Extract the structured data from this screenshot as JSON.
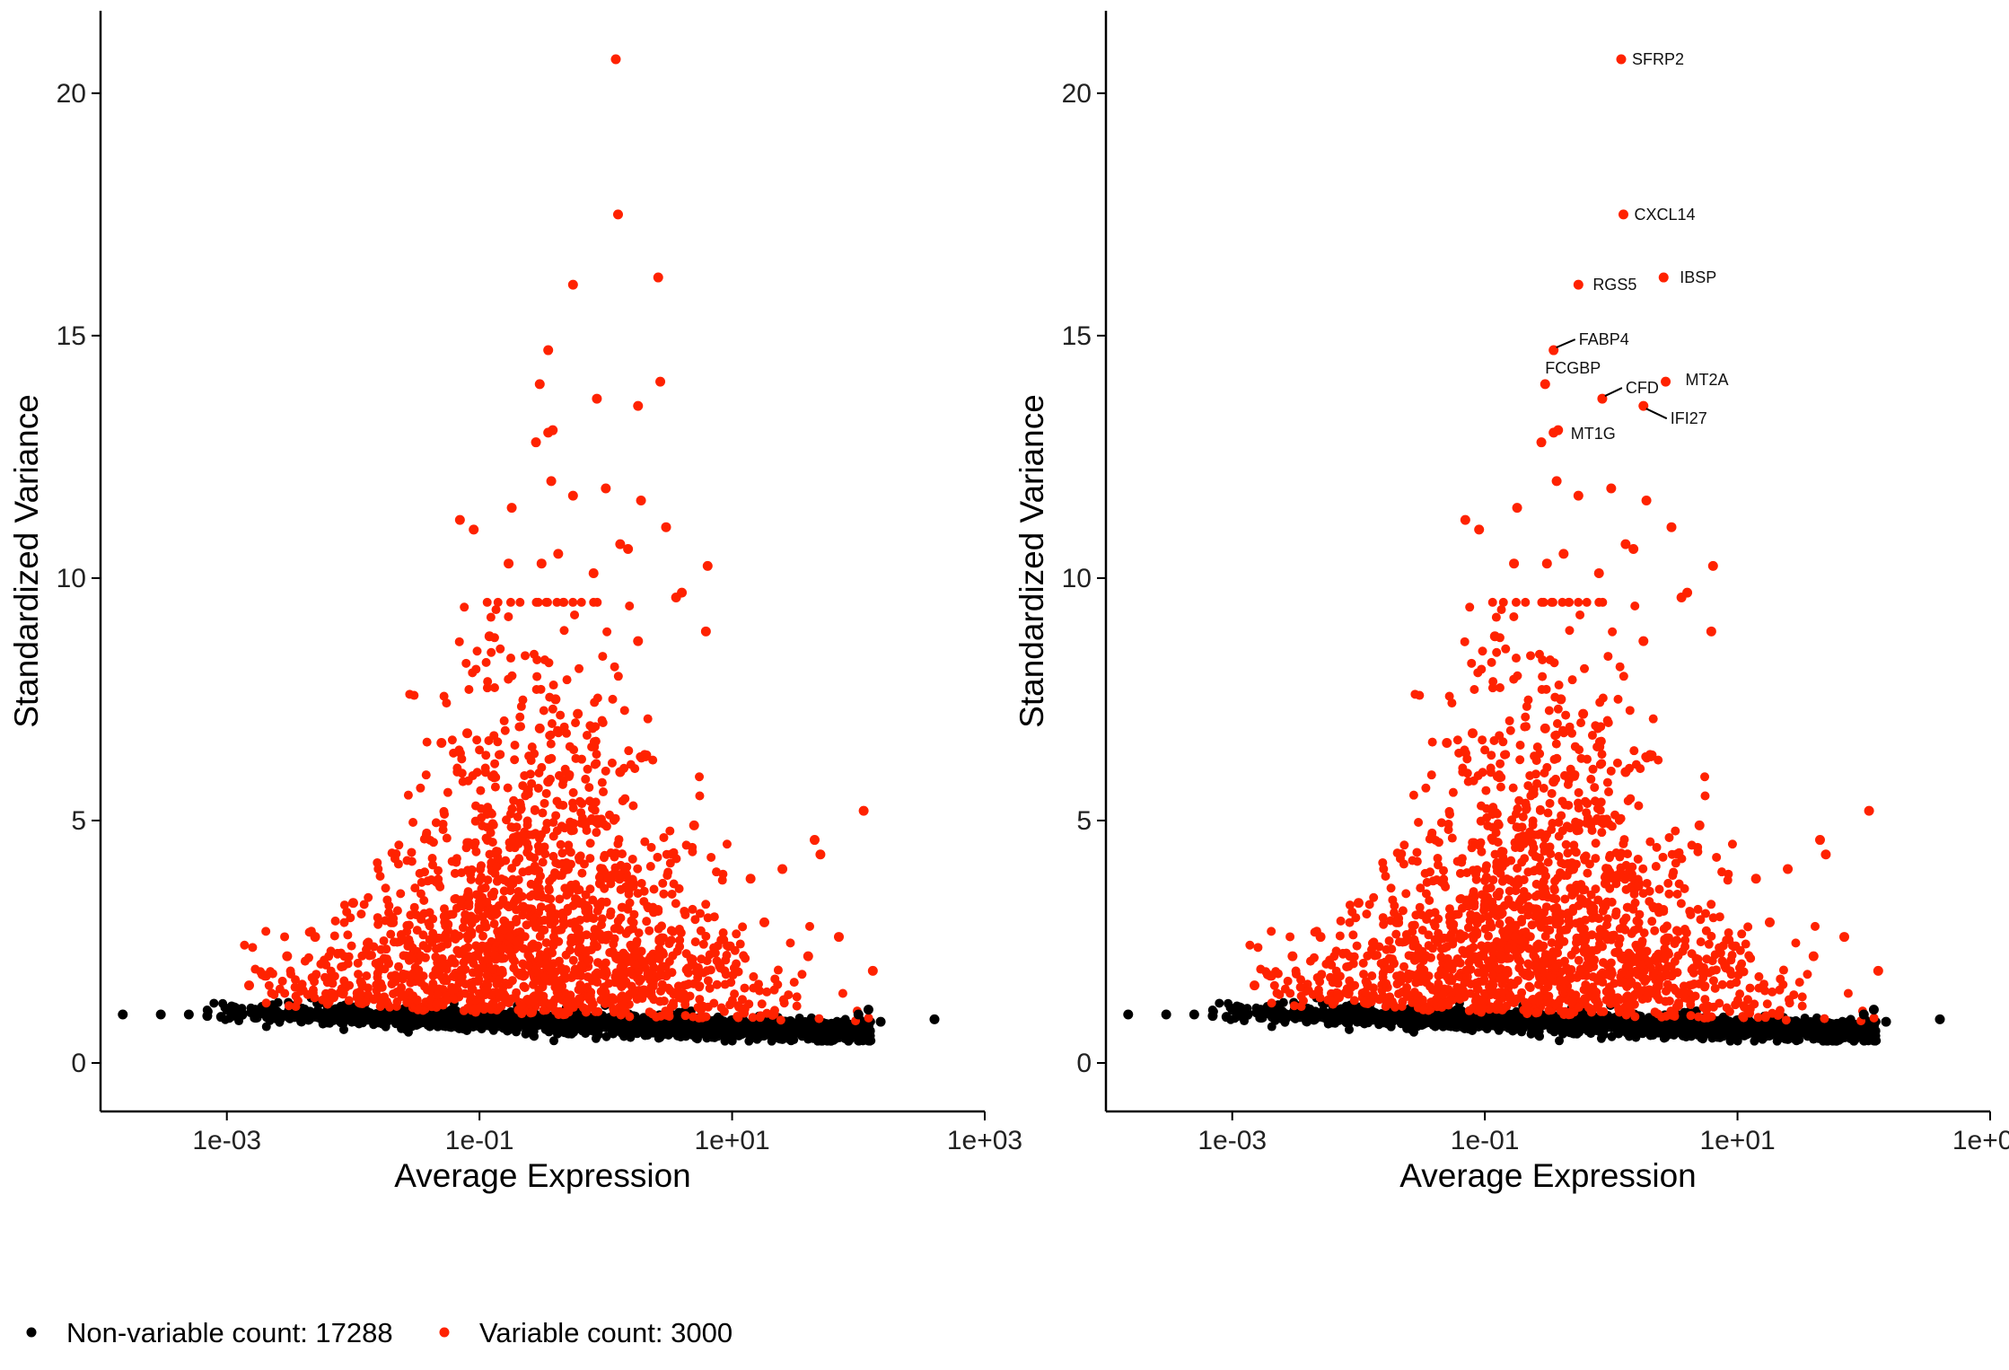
{
  "chart_data": [
    {
      "type": "scatter",
      "title": "",
      "xlabel": "Average Expression",
      "ylabel": "Standardized Variance",
      "x_scale": "log10",
      "xlim": [
        0.0001,
        1000
      ],
      "ylim": [
        -1,
        21.7
      ],
      "x_ticks": [
        0.001,
        0.1,
        10,
        1000
      ],
      "x_tick_labels": [
        "1e-03",
        "1e-01",
        "1e+01",
        "1e+03"
      ],
      "y_ticks": [
        0,
        5,
        10,
        15,
        20
      ],
      "y_tick_labels": [
        "0",
        "5",
        "10",
        "15",
        "20"
      ],
      "grid": false,
      "series": [
        {
          "name": "Non-variable count: 17288",
          "color": "#000000",
          "points": [
            [
              0.00015,
              1.0
            ],
            [
              0.0003,
              1.0
            ],
            [
              0.0005,
              1.0
            ],
            [
              0.0007,
              0.97
            ],
            [
              0.0009,
              0.95
            ],
            [
              400,
              0.9
            ],
            [
              150,
              0.85
            ],
            [
              100,
              1.0
            ],
            [
              120,
              1.1
            ],
            [
              80,
              0.7
            ],
            [
              60,
              0.5
            ]
          ]
        },
        {
          "name": "Variable count: 3000",
          "color": "#ff2200",
          "points": [
            [
              1.2,
              20.7
            ],
            [
              1.25,
              17.5
            ],
            [
              0.55,
              16.05
            ],
            [
              2.6,
              16.2
            ],
            [
              0.35,
              14.7
            ],
            [
              2.7,
              14.05
            ],
            [
              0.3,
              14.0
            ],
            [
              0.85,
              13.7
            ],
            [
              1.8,
              13.55
            ],
            [
              0.38,
              13.05
            ],
            [
              0.35,
              13.0
            ],
            [
              0.28,
              12.8
            ],
            [
              0.37,
              12.0
            ],
            [
              0.55,
              11.7
            ],
            [
              1.0,
              11.85
            ],
            [
              1.9,
              11.6
            ],
            [
              0.07,
              11.2
            ],
            [
              0.18,
              11.45
            ],
            [
              0.09,
              11.0
            ],
            [
              0.42,
              10.5
            ],
            [
              3.0,
              11.05
            ],
            [
              1.3,
              10.7
            ],
            [
              0.17,
              10.3
            ],
            [
              0.31,
              10.3
            ],
            [
              1.5,
              10.6
            ],
            [
              6.4,
              10.25
            ],
            [
              0.8,
              10.1
            ],
            [
              4.0,
              9.7
            ],
            [
              3.6,
              9.6
            ],
            [
              0.12,
              8.8
            ],
            [
              1.8,
              8.7
            ],
            [
              6.2,
              8.9
            ],
            [
              0.4,
              7.5
            ],
            [
              0.6,
              7.2
            ],
            [
              0.3,
              6.9
            ],
            [
              0.05,
              6.6
            ],
            [
              0.08,
              6.8
            ],
            [
              1.3,
              6.0
            ],
            [
              0.35,
              5.8
            ],
            [
              5.0,
              4.9
            ],
            [
              110,
              5.2
            ],
            [
              45,
              4.6
            ],
            [
              50,
              4.3
            ],
            [
              25,
              4.0
            ],
            [
              14,
              3.8
            ],
            [
              70,
              2.6
            ],
            [
              40,
              2.2
            ],
            [
              130,
              1.9
            ],
            [
              18,
              2.9
            ],
            [
              8,
              2.0
            ],
            [
              0.3,
              3.5
            ],
            [
              0.5,
              4.0
            ],
            [
              0.1,
              3.2
            ],
            [
              0.9,
              3.7
            ],
            [
              0.01,
              3.3
            ],
            [
              0.005,
              2.6
            ],
            [
              0.02,
              2.9
            ],
            [
              0.2,
              2.5
            ],
            [
              0.7,
              2.3
            ],
            [
              1.5,
              2.1
            ],
            [
              3.0,
              1.8
            ],
            [
              0.003,
              2.2
            ],
            [
              0.002,
              1.8
            ],
            [
              0.0015,
              1.6
            ],
            [
              0.15,
              1.9
            ],
            [
              0.4,
              1.7
            ],
            [
              2.0,
              1.5
            ]
          ]
        }
      ],
      "labels": [
        {
          "text": "SFRP2",
          "x": 1.2,
          "y": 20.7
        },
        {
          "text": "CXCL14",
          "x": 1.25,
          "y": 17.5
        },
        {
          "text": "RGS5",
          "x": 0.55,
          "y": 16.05
        },
        {
          "text": "IBSP",
          "x": 2.6,
          "y": 16.2
        },
        {
          "text": "FABP4",
          "x": 0.35,
          "y": 14.7
        },
        {
          "text": "FCGBP",
          "x": 0.3,
          "y": 14.0
        },
        {
          "text": "MT2A",
          "x": 2.7,
          "y": 14.05
        },
        {
          "text": "CFD",
          "x": 0.85,
          "y": 13.7
        },
        {
          "text": "IFI27",
          "x": 1.8,
          "y": 13.55
        },
        {
          "text": "MT1G",
          "x": 0.38,
          "y": 13.05
        }
      ],
      "legend_position": "bottom-left"
    }
  ],
  "legend": {
    "items": [
      {
        "label": "Non-variable count: 17288",
        "color": "#000000"
      },
      {
        "label": "Variable count: 3000",
        "color": "#ff2200"
      }
    ]
  }
}
